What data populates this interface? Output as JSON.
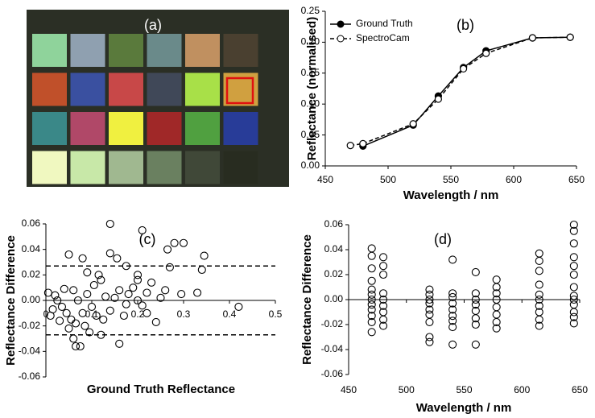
{
  "photo": {
    "label": "(a)"
  },
  "chart_data": [
    {
      "type": "line",
      "title": "(b)",
      "xlabel": "Wavelength  /  nm",
      "ylabel": "Reflectance  (normalised)",
      "xlim": [
        450,
        650
      ],
      "xticks": [
        450,
        500,
        550,
        600,
        650
      ],
      "ylim": [
        0,
        0.25
      ],
      "yticks": [
        {
          "value": 0,
          "label": "0.00"
        },
        0.05,
        {
          "value": 0.1,
          "label": "0.10"
        },
        0.15,
        {
          "value": 0.2,
          "label": "0.20"
        },
        0.25
      ],
      "legend": "upper left",
      "series": [
        {
          "name": "Ground Truth",
          "color": "#000000",
          "line_style": "solid",
          "marker": "filled",
          "x": [
            480,
            520,
            540,
            560,
            578,
            615,
            645
          ],
          "values": [
            0.032,
            0.066,
            0.113,
            0.159,
            0.186,
            0.207,
            0.208
          ]
        },
        {
          "name": "SpectroCam",
          "color": "#000000",
          "line_style": "dashed",
          "marker": "open",
          "x": [
            470,
            480,
            520,
            540,
            560,
            578,
            615,
            645
          ],
          "values": [
            0.033,
            0.036,
            0.068,
            0.108,
            0.157,
            0.182,
            0.207,
            0.208
          ]
        }
      ]
    },
    {
      "type": "scatter",
      "title": "(c)",
      "xlabel": "Ground Truth Reflectance",
      "ylabel": "Reflectance Difference",
      "xlim": [
        0,
        0.5
      ],
      "xticks": [
        0,
        0.1,
        0.2,
        0.3,
        0.4,
        0.5
      ],
      "ylim": [
        -0.06,
        0.06
      ],
      "yticks": [
        -0.06,
        -0.04,
        -0.02,
        {
          "value": 0,
          "label": "0.00"
        },
        0.02,
        0.04,
        0.06
      ],
      "hlines": [
        0.027,
        -0.027
      ],
      "color": "#000000",
      "x": [
        0.14,
        0.21,
        0.28,
        0.265,
        0.3,
        0.345,
        0.05,
        0.08,
        0.14,
        0.155,
        0.175,
        0.09,
        0.12,
        0.115,
        0.2,
        0.2,
        0.26,
        0.27,
        0.295,
        0.34,
        0.33,
        0.42,
        0.24,
        0.16,
        0.17,
        0.12,
        0.075,
        0.065,
        0.06,
        0.05,
        0.03,
        0.01,
        0.005,
        0.02,
        0.04,
        0.06,
        0.08,
        0.1,
        0.13,
        0.15,
        0.18,
        0.19,
        0.22,
        0.22,
        0.25,
        0.07,
        0.09,
        0.11,
        0.035,
        0.045,
        0.055,
        0.025,
        0.14,
        0.16,
        0.2,
        0.085,
        0.065,
        0.105,
        0.125,
        0.095,
        0.015,
        0.175,
        0.21,
        0.23
      ],
      "values": [
        0.06,
        0.055,
        0.045,
        0.04,
        0.045,
        0.035,
        0.036,
        0.033,
        0.037,
        0.033,
        0.027,
        0.022,
        0.016,
        0.02,
        0.016,
        0.02,
        0.008,
        0.026,
        0.005,
        0.024,
        0.006,
        -0.005,
        -0.017,
        -0.034,
        -0.012,
        -0.027,
        -0.036,
        -0.036,
        -0.03,
        -0.022,
        -0.016,
        -0.012,
        0.006,
        0.004,
        0.009,
        0.008,
        -0.01,
        -0.005,
        0.003,
        0.002,
        0.005,
        0.01,
        0.006,
        -0.01,
        0.002,
        0.0,
        0.005,
        -0.012,
        -0.005,
        -0.01,
        -0.015,
        0.0,
        -0.008,
        0.008,
        0.0,
        -0.02,
        -0.018,
        0.012,
        -0.015,
        -0.025,
        -0.007,
        -0.003,
        -0.004,
        0.014
      ]
    },
    {
      "type": "scatter",
      "title": "(d)",
      "xlabel": "Wavelength  /  nm",
      "ylabel": "Reflectance Difference",
      "xlim": [
        450,
        650
      ],
      "xticks": [
        450,
        500,
        550,
        600,
        650
      ],
      "ylim": [
        -0.06,
        0.06
      ],
      "yticks": [
        -0.06,
        -0.04,
        -0.02,
        {
          "value": 0,
          "label": "0.00"
        },
        0.02,
        0.04,
        0.06
      ],
      "color": "#000000",
      "x": [
        470,
        470,
        470,
        470,
        470,
        470,
        470,
        470,
        470,
        470,
        470,
        470,
        480,
        480,
        480,
        480,
        480,
        480,
        480,
        480,
        480,
        520,
        520,
        520,
        520,
        520,
        520,
        520,
        520,
        520,
        540,
        540,
        540,
        540,
        540,
        540,
        540,
        540,
        540,
        560,
        560,
        560,
        560,
        560,
        560,
        560,
        560,
        578,
        578,
        578,
        578,
        578,
        578,
        578,
        578,
        615,
        615,
        615,
        615,
        615,
        615,
        615,
        615,
        615,
        615,
        645,
        645,
        645,
        645,
        645,
        645,
        645,
        645,
        645,
        645,
        645,
        645,
        645
      ],
      "values": [
        0.041,
        0.035,
        0.025,
        0.015,
        0.008,
        0.004,
        0.0,
        -0.004,
        -0.008,
        -0.013,
        -0.018,
        -0.026,
        0.034,
        0.027,
        0.02,
        0.005,
        0.0,
        -0.005,
        -0.01,
        -0.016,
        -0.021,
        0.008,
        0.004,
        0.0,
        -0.003,
        -0.008,
        -0.012,
        -0.018,
        -0.03,
        -0.034,
        0.032,
        0.005,
        0.002,
        -0.003,
        -0.008,
        -0.013,
        -0.017,
        -0.022,
        -0.036,
        0.022,
        0.005,
        0.0,
        -0.004,
        -0.009,
        -0.015,
        -0.02,
        -0.036,
        0.016,
        0.01,
        0.005,
        0.0,
        -0.006,
        -0.012,
        -0.018,
        -0.023,
        0.037,
        0.031,
        0.023,
        0.012,
        0.004,
        0.0,
        -0.005,
        -0.01,
        -0.016,
        -0.021,
        0.06,
        0.055,
        0.045,
        0.034,
        0.027,
        0.02,
        0.01,
        0.003,
        0.0,
        -0.004,
        -0.01,
        -0.014,
        -0.019
      ]
    }
  ]
}
